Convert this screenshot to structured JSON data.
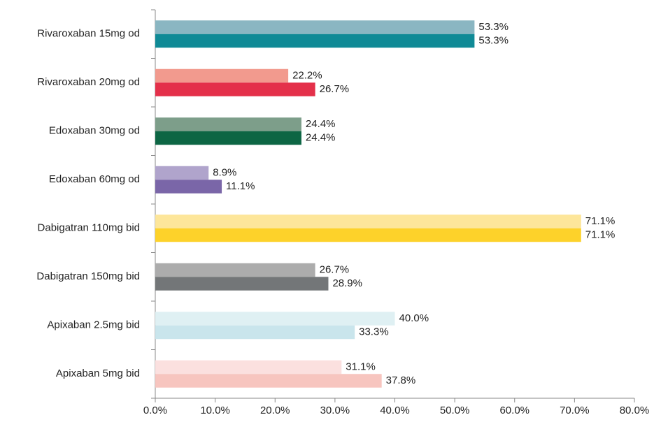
{
  "chart_data": {
    "type": "bar",
    "orientation": "horizontal",
    "categories": [
      "Rivaroxaban 15mg od",
      "Rivaroxaban 20mg od",
      "Edoxaban 30mg od",
      "Edoxaban 60mg od",
      "Dabigatran 110mg bid",
      "Dabigatran 150mg bid",
      "Apixaban 2.5mg bid",
      "Apixaban 5mg bid"
    ],
    "series": [
      {
        "colors": [
          "#8ab6c2",
          "#f29a8e",
          "#7d9e8a",
          "#b0a4cc",
          "#fde69a",
          "#acacac",
          "#dff0f3",
          "#fbe0df"
        ],
        "values": [
          53.3,
          22.2,
          24.4,
          8.9,
          71.1,
          26.7,
          40.0,
          31.1
        ],
        "value_labels": [
          "53.3%",
          "22.2%",
          "24.4%",
          "8.9%",
          "71.1%",
          "26.7%",
          "40.0%",
          "31.1%"
        ]
      },
      {
        "colors": [
          "#0f8a96",
          "#e4304a",
          "#0d6644",
          "#7a66a8",
          "#fdd22a",
          "#737678",
          "#c9e5ec",
          "#f7c5bf"
        ],
        "values": [
          53.3,
          26.7,
          24.4,
          11.1,
          71.1,
          28.9,
          33.3,
          37.8
        ],
        "value_labels": [
          "53.3%",
          "26.7%",
          "24.4%",
          "11.1%",
          "71.1%",
          "28.9%",
          "33.3%",
          "37.8%"
        ]
      }
    ],
    "xlim": [
      0,
      80
    ],
    "xticks": [
      {
        "value": 0,
        "label": "0.0%"
      },
      {
        "value": 10,
        "label": "10.0%"
      },
      {
        "value": 20,
        "label": "20.0%"
      },
      {
        "value": 30,
        "label": "30.0%"
      },
      {
        "value": 40,
        "label": "40.0%"
      },
      {
        "value": 50,
        "label": "50.0%"
      },
      {
        "value": 60,
        "label": "60.0%"
      },
      {
        "value": 70,
        "label": "70.0%"
      },
      {
        "value": 80,
        "label": "80.0%"
      }
    ]
  }
}
